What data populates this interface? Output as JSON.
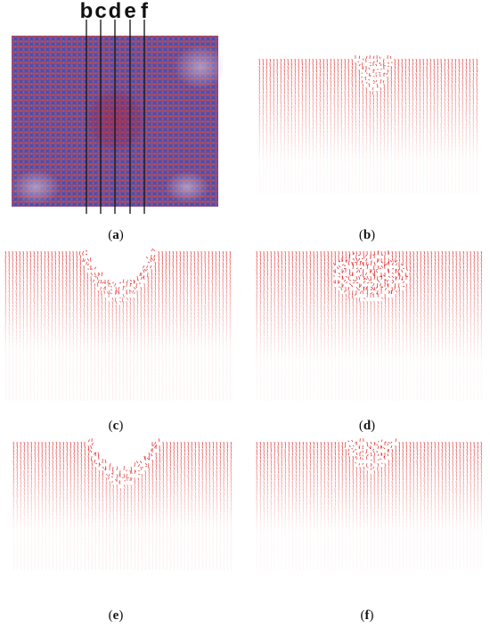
{
  "figure": {
    "panel_a": {
      "cut_labels": [
        "b",
        "c",
        "d",
        "e",
        "f"
      ],
      "caption_letter": "a",
      "colors": {
        "lattice_blue": "#3a4fb0",
        "lattice_red": "#c8453a",
        "cut_line": "#111111"
      }
    },
    "panels": [
      {
        "id": "b",
        "caption_letter": "b",
        "pattern": "amorphized-near-surface-center"
      },
      {
        "id": "c",
        "caption_letter": "c",
        "pattern": "crater-with-pileup"
      },
      {
        "id": "d",
        "caption_letter": "d",
        "pattern": "deep-damage-bowl"
      },
      {
        "id": "e",
        "caption_letter": "e",
        "pattern": "crater-with-pileup"
      },
      {
        "id": "f",
        "caption_letter": "f",
        "pattern": "shallow-center-damage"
      }
    ],
    "arrow_color": "#e02020"
  }
}
